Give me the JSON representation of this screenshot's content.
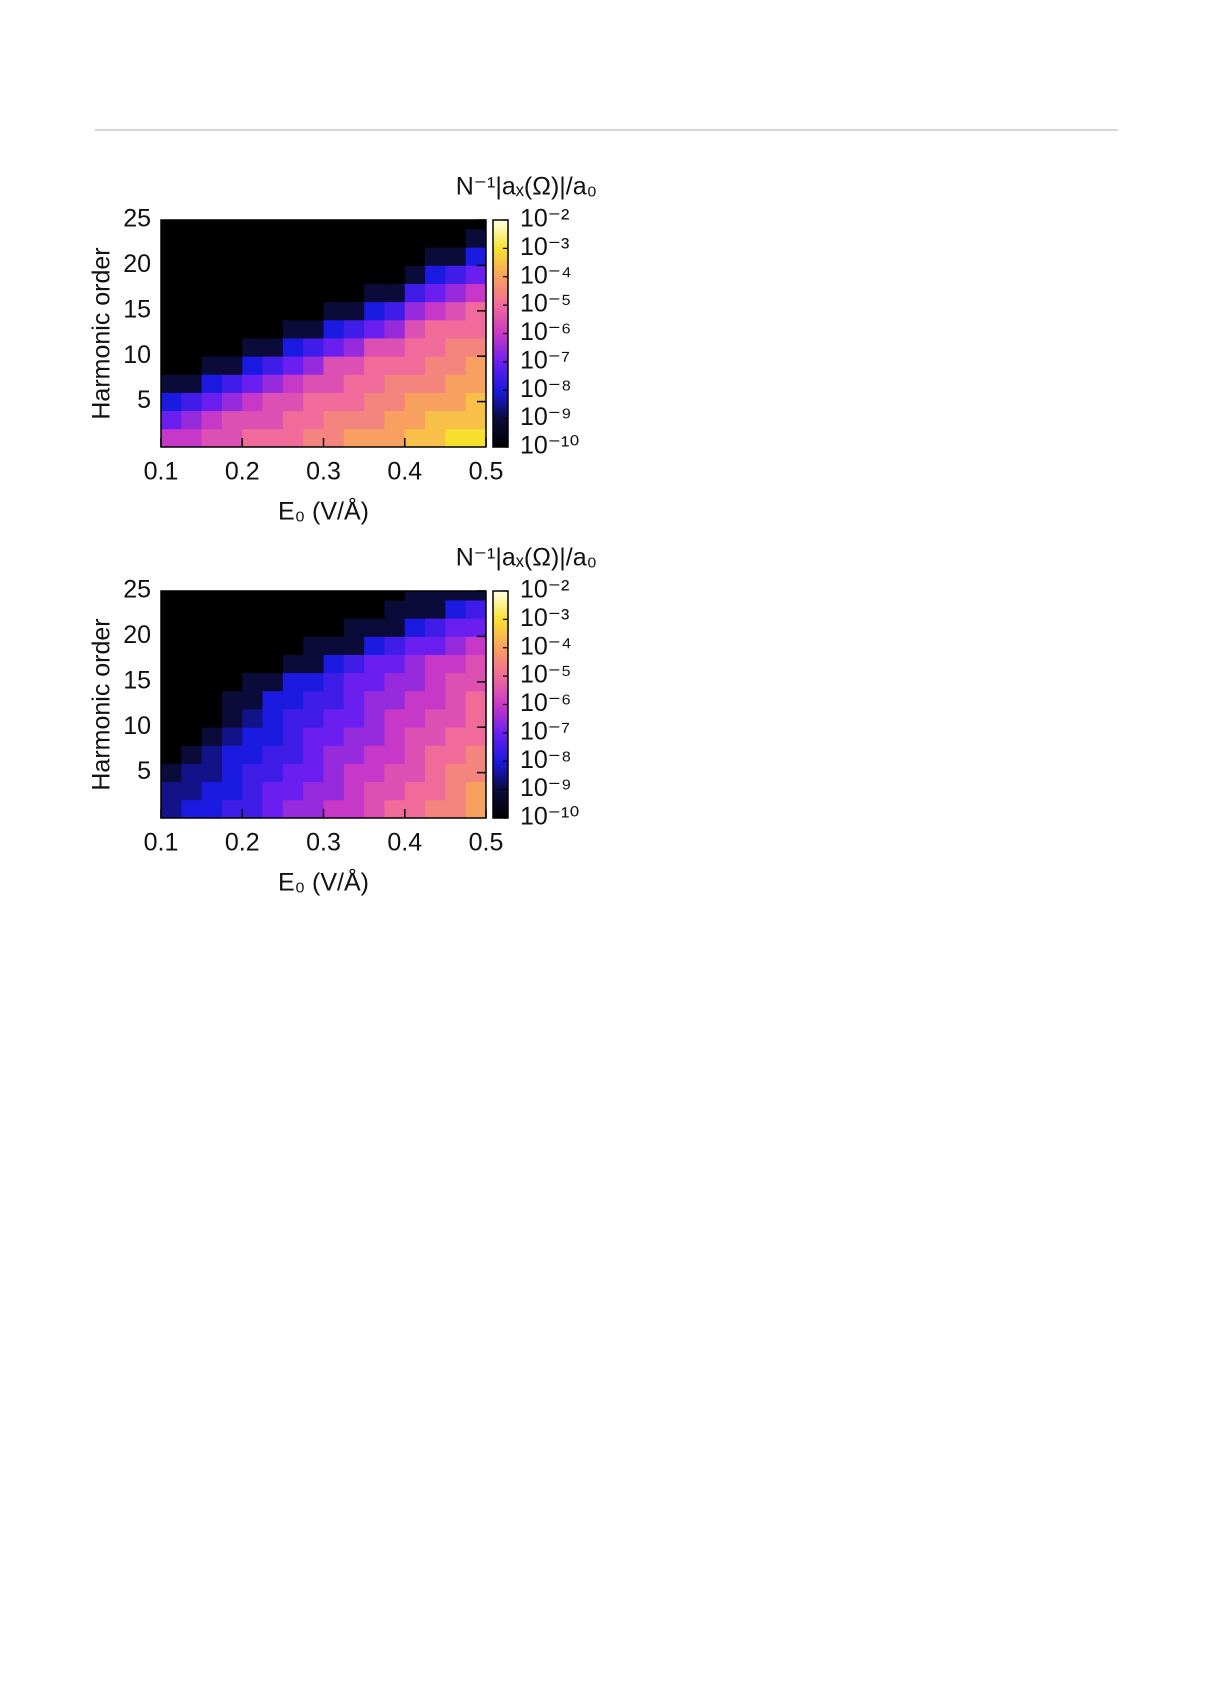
{
  "chart_data": [
    {
      "type": "heatmap",
      "title": "N⁻¹|aₓ(Ω)|/a₀",
      "xlabel": "E₀ (V/Å)",
      "ylabel": "Harmonic order",
      "x": [
        0.1125,
        0.1375,
        0.1625,
        0.1875,
        0.2125,
        0.2375,
        0.2625,
        0.2875,
        0.3125,
        0.3375,
        0.3625,
        0.3875,
        0.4125,
        0.4375,
        0.4625,
        0.4875
      ],
      "y": [
        1,
        3,
        5,
        7,
        9,
        11,
        13,
        15,
        17,
        19,
        21,
        23,
        25
      ],
      "values": [
        [
          1e-06,
          1e-06,
          3e-06,
          3e-06,
          1e-05,
          1e-05,
          1e-05,
          3e-05,
          3e-05,
          0.0001,
          0.0001,
          0.0001,
          0.0003,
          0.0003,
          0.001,
          0.001
        ],
        [
          1e-07,
          3e-07,
          1e-06,
          3e-06,
          3e-06,
          3e-06,
          1e-05,
          1e-05,
          3e-05,
          3e-05,
          3e-05,
          0.0001,
          0.0001,
          0.0003,
          0.0003,
          0.0003
        ],
        [
          1e-08,
          3e-08,
          1e-07,
          3e-07,
          1e-06,
          3e-06,
          3e-06,
          1e-05,
          1e-05,
          1e-05,
          3e-05,
          3e-05,
          0.0001,
          0.0001,
          0.0001,
          0.0003
        ],
        [
          1e-09,
          1e-09,
          1e-08,
          3e-08,
          1e-07,
          3e-07,
          1e-06,
          3e-06,
          3e-06,
          1e-05,
          1e-05,
          3e-05,
          3e-05,
          3e-05,
          0.0001,
          0.0001
        ],
        [
          1e-10,
          1e-10,
          1e-09,
          1e-09,
          1e-08,
          3e-08,
          1e-07,
          3e-07,
          3e-06,
          3e-06,
          1e-05,
          1e-05,
          1e-05,
          3e-05,
          3e-05,
          0.0001
        ],
        [
          1e-10,
          1e-10,
          1e-10,
          1e-10,
          1e-09,
          1e-09,
          1e-08,
          3e-08,
          1e-07,
          3e-07,
          3e-06,
          3e-06,
          1e-05,
          1e-05,
          3e-05,
          3e-05
        ],
        [
          1e-10,
          1e-10,
          1e-10,
          1e-10,
          1e-10,
          1e-10,
          1e-09,
          1e-09,
          1e-08,
          3e-08,
          1e-07,
          3e-07,
          3e-06,
          1e-05,
          1e-05,
          1e-05
        ],
        [
          1e-10,
          1e-10,
          1e-10,
          1e-10,
          1e-10,
          1e-10,
          1e-10,
          1e-10,
          1e-09,
          1e-09,
          1e-08,
          3e-08,
          3e-07,
          1e-06,
          3e-06,
          1e-05
        ],
        [
          1e-10,
          1e-10,
          1e-10,
          1e-10,
          1e-10,
          1e-10,
          1e-10,
          1e-10,
          1e-10,
          1e-10,
          1e-09,
          1e-09,
          3e-08,
          1e-07,
          3e-07,
          1e-06
        ],
        [
          1e-10,
          1e-10,
          1e-10,
          1e-10,
          1e-10,
          1e-10,
          1e-10,
          1e-10,
          1e-10,
          1e-10,
          1e-10,
          1e-10,
          1e-09,
          1e-08,
          3e-08,
          1e-07
        ],
        [
          1e-10,
          1e-10,
          1e-10,
          1e-10,
          1e-10,
          1e-10,
          1e-10,
          1e-10,
          1e-10,
          1e-10,
          1e-10,
          1e-10,
          1e-10,
          1e-09,
          1e-09,
          1e-08
        ],
        [
          1e-10,
          1e-10,
          1e-10,
          1e-10,
          1e-10,
          1e-10,
          1e-10,
          1e-10,
          1e-10,
          1e-10,
          1e-10,
          1e-10,
          1e-10,
          1e-10,
          1e-10,
          1e-09
        ],
        [
          1e-10,
          1e-10,
          1e-10,
          1e-10,
          1e-10,
          1e-10,
          1e-10,
          1e-10,
          1e-10,
          1e-10,
          1e-10,
          1e-10,
          1e-10,
          1e-10,
          1e-10,
          1e-10
        ]
      ],
      "xlim": [
        0.1,
        0.5
      ],
      "xticks": [
        0.1,
        0.2,
        0.3,
        0.4,
        0.5
      ],
      "ylim": [
        0,
        25
      ],
      "yticks": [
        5,
        10,
        15,
        20,
        25
      ],
      "colorscale": "log",
      "clim": [
        1e-10,
        0.01
      ],
      "cticks": [
        {
          "value": 1e-10,
          "label": "10⁻¹⁰"
        },
        {
          "value": 1e-09,
          "label": "10⁻⁹"
        },
        {
          "value": 1e-08,
          "label": "10⁻⁸"
        },
        {
          "value": 1e-07,
          "label": "10⁻⁷"
        },
        {
          "value": 1e-06,
          "label": "10⁻⁶"
        },
        {
          "value": 1e-05,
          "label": "10⁻⁵"
        },
        {
          "value": 0.0001,
          "label": "10⁻⁴"
        },
        {
          "value": 0.001,
          "label": "10⁻³"
        },
        {
          "value": 0.01,
          "label": "10⁻²"
        }
      ],
      "colormap": [
        "#000000",
        "#0b0b3a",
        "#1a1ae0",
        "#6a1ef0",
        "#c838c8",
        "#f06a9a",
        "#f8a060",
        "#f8e030",
        "#ffffe0"
      ]
    },
    {
      "type": "heatmap",
      "title": "N⁻¹|aₓ(Ω)|/a₀",
      "xlabel": "E₀ (V/Å)",
      "ylabel": "Harmonic order",
      "x": [
        0.1125,
        0.1375,
        0.1625,
        0.1875,
        0.2125,
        0.2375,
        0.2625,
        0.2875,
        0.3125,
        0.3375,
        0.3625,
        0.3875,
        0.4125,
        0.4375,
        0.4625,
        0.4875
      ],
      "y": [
        1,
        3,
        5,
        7,
        9,
        11,
        13,
        15,
        17,
        19,
        21,
        23,
        25
      ],
      "values": [
        [
          3e-09,
          1e-08,
          1e-08,
          3e-08,
          3e-08,
          1e-07,
          3e-07,
          3e-07,
          1e-06,
          1e-06,
          3e-06,
          1e-05,
          1e-05,
          3e-05,
          3e-05,
          0.0001
        ],
        [
          3e-09,
          3e-09,
          1e-08,
          1e-08,
          3e-08,
          1e-07,
          1e-07,
          3e-07,
          3e-07,
          1e-06,
          3e-06,
          3e-06,
          1e-05,
          1e-05,
          3e-05,
          0.0001
        ],
        [
          1e-09,
          3e-09,
          3e-09,
          1e-08,
          3e-08,
          3e-08,
          1e-07,
          1e-07,
          3e-07,
          1e-06,
          1e-06,
          3e-06,
          3e-06,
          1e-05,
          3e-05,
          3e-05
        ],
        [
          1e-10,
          1e-09,
          3e-09,
          1e-08,
          1e-08,
          3e-08,
          3e-08,
          1e-07,
          3e-07,
          3e-07,
          1e-06,
          1e-06,
          3e-06,
          1e-05,
          1e-05,
          3e-05
        ],
        [
          1e-10,
          1e-10,
          1e-09,
          3e-09,
          1e-08,
          1e-08,
          3e-08,
          1e-07,
          1e-07,
          3e-07,
          3e-07,
          1e-06,
          3e-06,
          3e-06,
          1e-05,
          1e-05
        ],
        [
          1e-10,
          1e-10,
          1e-10,
          1e-09,
          3e-09,
          1e-08,
          3e-08,
          3e-08,
          1e-07,
          1e-07,
          3e-07,
          1e-06,
          1e-06,
          3e-06,
          3e-06,
          1e-05
        ],
        [
          1e-10,
          1e-10,
          1e-10,
          1e-09,
          1e-09,
          1e-08,
          1e-08,
          3e-08,
          3e-08,
          1e-07,
          3e-07,
          3e-07,
          1e-06,
          1e-06,
          3e-06,
          1e-05
        ],
        [
          1e-10,
          1e-10,
          1e-10,
          1e-10,
          1e-09,
          1e-09,
          1e-08,
          1e-08,
          3e-08,
          1e-07,
          1e-07,
          3e-07,
          3e-07,
          1e-06,
          3e-06,
          3e-06
        ],
        [
          1e-10,
          1e-10,
          1e-10,
          1e-10,
          1e-10,
          1e-10,
          1e-09,
          1e-09,
          1e-08,
          3e-08,
          1e-07,
          1e-07,
          3e-07,
          1e-06,
          1e-06,
          3e-06
        ],
        [
          1e-10,
          1e-10,
          1e-10,
          1e-10,
          1e-10,
          1e-10,
          1e-10,
          1e-09,
          1e-09,
          1e-09,
          1e-08,
          3e-08,
          1e-07,
          1e-07,
          3e-07,
          1e-06
        ],
        [
          1e-10,
          1e-10,
          1e-10,
          1e-10,
          1e-10,
          1e-10,
          1e-10,
          1e-10,
          1e-10,
          1e-09,
          1e-09,
          1e-09,
          1e-08,
          3e-08,
          1e-07,
          1e-07
        ],
        [
          1e-10,
          1e-10,
          1e-10,
          1e-10,
          1e-10,
          1e-10,
          1e-10,
          1e-10,
          1e-10,
          1e-10,
          1e-10,
          1e-09,
          1e-09,
          1e-09,
          1e-08,
          3e-08
        ],
        [
          1e-10,
          1e-10,
          1e-10,
          1e-10,
          1e-10,
          1e-10,
          1e-10,
          1e-10,
          1e-10,
          1e-10,
          1e-10,
          1e-10,
          1e-09,
          1e-09,
          1e-09,
          1e-09
        ]
      ],
      "xlim": [
        0.1,
        0.5
      ],
      "xticks": [
        0.1,
        0.2,
        0.3,
        0.4,
        0.5
      ],
      "ylim": [
        0,
        25
      ],
      "yticks": [
        5,
        10,
        15,
        20,
        25
      ],
      "colorscale": "log",
      "clim": [
        1e-10,
        0.01
      ],
      "cticks": [
        {
          "value": 1e-10,
          "label": "10⁻¹⁰"
        },
        {
          "value": 1e-09,
          "label": "10⁻⁹"
        },
        {
          "value": 1e-08,
          "label": "10⁻⁸"
        },
        {
          "value": 1e-07,
          "label": "10⁻⁷"
        },
        {
          "value": 1e-06,
          "label": "10⁻⁶"
        },
        {
          "value": 1e-05,
          "label": "10⁻⁵"
        },
        {
          "value": 0.0001,
          "label": "10⁻⁴"
        },
        {
          "value": 0.001,
          "label": "10⁻³"
        },
        {
          "value": 0.01,
          "label": "10⁻²"
        }
      ],
      "colormap": [
        "#000000",
        "#0b0b3a",
        "#1a1ae0",
        "#6a1ef0",
        "#c838c8",
        "#f06a9a",
        "#f8a060",
        "#f8e030",
        "#ffffe0"
      ]
    }
  ]
}
